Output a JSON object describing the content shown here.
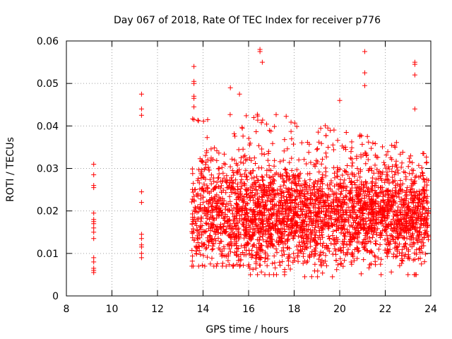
{
  "chart_data": {
    "type": "scatter",
    "title": "Day 067 of 2018, Rate Of TEC Index for receiver p776",
    "xlabel": "GPS time / hours",
    "ylabel": "ROTI / TECUs",
    "xlim": [
      8,
      24
    ],
    "ylim": [
      0,
      0.06
    ],
    "x_ticks": [
      8,
      10,
      12,
      14,
      16,
      18,
      20,
      22,
      24
    ],
    "x_tick_labels": [
      "8",
      "10",
      "12",
      "14",
      "16",
      "18",
      "20",
      "22",
      "24"
    ],
    "y_ticks": [
      0,
      0.01,
      0.02,
      0.03,
      0.04,
      0.05,
      0.06
    ],
    "y_tick_labels": [
      "0",
      "0.01",
      "0.02",
      "0.03",
      "0.04",
      "0.05",
      "0.06"
    ],
    "grid": true,
    "marker": "plus",
    "color": "#ff0000",
    "series": [
      {
        "name": "ROTI",
        "x": [
          9.2,
          9.2,
          9.2,
          9.2,
          9.2,
          9.2,
          9.2,
          9.2,
          9.2,
          9.2,
          9.2,
          9.2,
          9.2,
          9.2,
          9.2,
          9.2,
          11.3,
          11.3,
          11.3,
          11.3,
          11.3,
          11.3,
          11.3,
          11.3,
          11.3,
          11.3,
          11.3,
          13.6,
          13.6,
          13.6,
          13.6,
          13.6,
          13.6,
          13.6,
          15.2,
          15.6,
          16.5,
          16.5,
          16.6,
          21.1,
          21.1,
          21.1,
          20.0,
          23.3,
          23.3,
          23.3,
          23.3
        ],
        "y": [
          0.031,
          0.0285,
          0.026,
          0.0255,
          0.0195,
          0.018,
          0.0175,
          0.017,
          0.016,
          0.015,
          0.0135,
          0.009,
          0.008,
          0.0065,
          0.006,
          0.0055,
          0.0475,
          0.044,
          0.0425,
          0.0245,
          0.022,
          0.0145,
          0.0135,
          0.012,
          0.0115,
          0.01,
          0.009,
          0.054,
          0.0505,
          0.05,
          0.047,
          0.0465,
          0.0445,
          0.0415,
          0.049,
          0.0475,
          0.058,
          0.0575,
          0.055,
          0.0575,
          0.0525,
          0.0495,
          0.046,
          0.055,
          0.0545,
          0.052,
          0.044
        ]
      }
    ],
    "dense_bands": [
      {
        "x": [
          13.5,
          16.0
        ],
        "y_mean": 0.019,
        "y_spread": 0.007,
        "y_min": 0.007,
        "y_max": 0.043,
        "count": 650
      },
      {
        "x": [
          16.0,
          18.0
        ],
        "y_mean": 0.019,
        "y_spread": 0.007,
        "y_min": 0.005,
        "y_max": 0.043,
        "count": 650
      },
      {
        "x": [
          18.0,
          20.5
        ],
        "y_mean": 0.019,
        "y_spread": 0.0065,
        "y_min": 0.0045,
        "y_max": 0.042,
        "count": 720
      },
      {
        "x": [
          20.5,
          22.5
        ],
        "y_mean": 0.02,
        "y_spread": 0.0065,
        "y_min": 0.005,
        "y_max": 0.038,
        "count": 620
      },
      {
        "x": [
          22.5,
          23.9
        ],
        "y_mean": 0.019,
        "y_spread": 0.0065,
        "y_min": 0.005,
        "y_max": 0.034,
        "count": 420
      }
    ]
  }
}
